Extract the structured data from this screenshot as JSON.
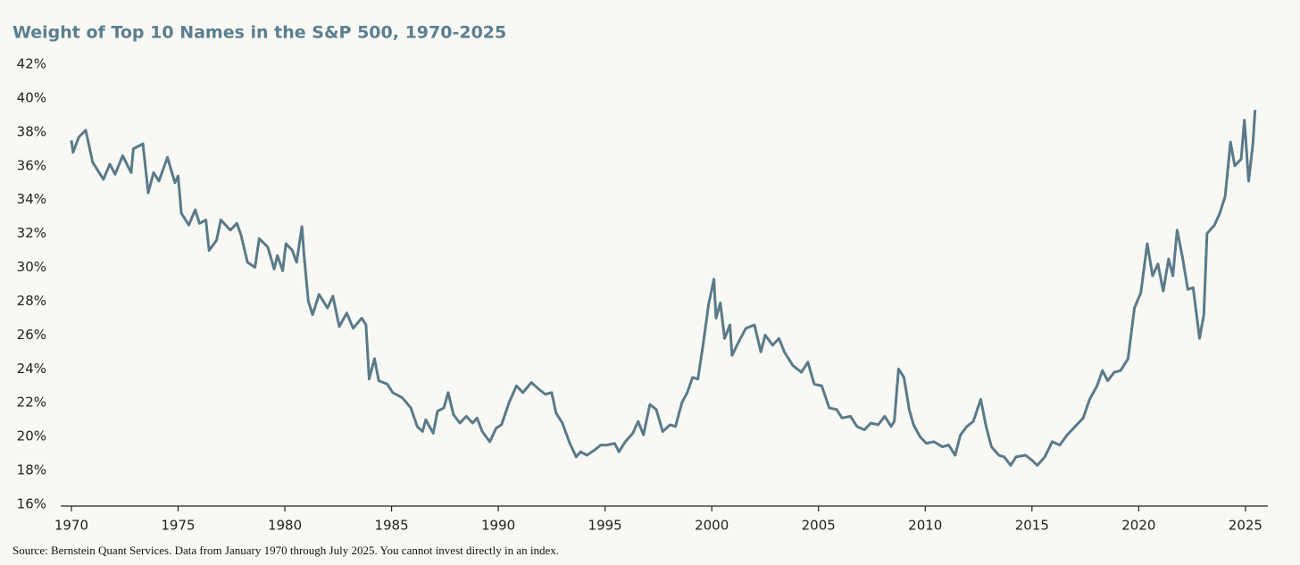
{
  "chart_data": {
    "type": "line",
    "title": "Weight of Top 10 Names in the S&P 500, 1970-2025",
    "note": "Source: Bernstein Quant Services. Data from January 1970 through July 2025. You cannot invest directly in an index.",
    "x": [
      1970,
      1970.08,
      1970.35,
      1970.67,
      1971,
      1971.5,
      1971.8,
      1972.05,
      1972.4,
      1972.8,
      1972.9,
      1973.35,
      1973.6,
      1973.85,
      1974.1,
      1974.5,
      1974.85,
      1975,
      1975.15,
      1975.5,
      1975.8,
      1976,
      1976.3,
      1976.45,
      1976.8,
      1977,
      1977.45,
      1977.75,
      1977.95,
      1978.25,
      1978.6,
      1978.8,
      1979.2,
      1979.5,
      1979.65,
      1979.9,
      1980.05,
      1980.35,
      1980.55,
      1980.8,
      1980.9,
      1981.1,
      1981.3,
      1981.6,
      1982,
      1982.25,
      1982.55,
      1982.9,
      1983.2,
      1983.6,
      1983.8,
      1983.95,
      1984.2,
      1984.4,
      1984.8,
      1985.05,
      1985.5,
      1985.9,
      1986.2,
      1986.45,
      1986.6,
      1986.95,
      1987.15,
      1987.45,
      1987.65,
      1987.9,
      1988.2,
      1988.5,
      1988.8,
      1989,
      1989.25,
      1989.6,
      1989.9,
      1990.15,
      1990.5,
      1990.85,
      1991.15,
      1991.55,
      1991.9,
      1992.2,
      1992.5,
      1992.7,
      1993,
      1993.35,
      1993.65,
      1993.85,
      1994.15,
      1994.5,
      1994.8,
      1995.1,
      1995.45,
      1995.65,
      1995.95,
      1996.3,
      1996.55,
      1996.8,
      1997.1,
      1997.4,
      1997.7,
      1998.05,
      1998.3,
      1998.6,
      1998.85,
      1999.1,
      1999.35,
      1999.6,
      1999.85,
      2000.1,
      2000.2,
      2000.4,
      2000.6,
      2000.85,
      2000.95,
      2001.3,
      2001.6,
      2002,
      2002.3,
      2002.5,
      2002.85,
      2003.15,
      2003.4,
      2003.8,
      2004.2,
      2004.5,
      2004.8,
      2005.15,
      2005.5,
      2005.85,
      2006.1,
      2006.5,
      2006.8,
      2007.15,
      2007.45,
      2007.8,
      2008.1,
      2008.4,
      2008.55,
      2008.75,
      2009,
      2009.25,
      2009.45,
      2009.75,
      2010.05,
      2010.4,
      2010.8,
      2011.1,
      2011.4,
      2011.65,
      2011.95,
      2012.25,
      2012.6,
      2012.85,
      2013.1,
      2013.45,
      2013.7,
      2014,
      2014.25,
      2014.7,
      2015,
      2015.25,
      2015.6,
      2015.95,
      2016.3,
      2016.65,
      2017.1,
      2017.4,
      2017.7,
      2018.05,
      2018.3,
      2018.55,
      2018.85,
      2019.15,
      2019.5,
      2019.8,
      2020.1,
      2020.4,
      2020.65,
      2020.9,
      2021.15,
      2021.4,
      2021.6,
      2021.8,
      2022.05,
      2022.3,
      2022.55,
      2022.85,
      2023.05,
      2023.2,
      2023.55,
      2023.8,
      2024.05,
      2024.3,
      2024.5,
      2024.8,
      2024.95,
      2025.15,
      2025.35,
      2025.45
    ],
    "series": [
      {
        "color": "#5a7a89",
        "values": [
          37.5,
          36.8,
          37.7,
          38.1,
          36.2,
          35.2,
          36.1,
          35.5,
          36.6,
          35.6,
          37,
          37.3,
          34.4,
          35.6,
          35.1,
          36.5,
          35,
          35.4,
          33.2,
          32.5,
          33.4,
          32.6,
          32.8,
          31,
          31.6,
          32.8,
          32.2,
          32.6,
          31.9,
          30.3,
          30,
          31.7,
          31.2,
          29.9,
          30.7,
          29.8,
          31.4,
          31,
          30.3,
          32.4,
          30.7,
          28,
          27.2,
          28.4,
          27.6,
          28.3,
          26.5,
          27.3,
          26.4,
          27,
          26.6,
          23.4,
          24.6,
          23.3,
          23.1,
          22.6,
          22.3,
          21.7,
          20.6,
          20.3,
          21,
          20.2,
          21.5,
          21.7,
          22.6,
          21.3,
          20.8,
          21.2,
          20.8,
          21.1,
          20.3,
          19.7,
          20.5,
          20.7,
          22,
          23,
          22.6,
          23.2,
          22.8,
          22.5,
          22.6,
          21.4,
          20.8,
          19.6,
          18.8,
          19.1,
          18.9,
          19.2,
          19.5,
          19.5,
          19.6,
          19.1,
          19.7,
          20.2,
          20.9,
          20.1,
          21.9,
          21.6,
          20.3,
          20.7,
          20.6,
          22,
          22.6,
          23.5,
          23.4,
          25.5,
          27.8,
          29.3,
          27,
          27.9,
          25.8,
          26.6,
          24.8,
          25.7,
          26.4,
          26.6,
          25,
          26,
          25.4,
          25.8,
          25,
          24.2,
          23.8,
          24.4,
          23.1,
          23,
          21.7,
          21.6,
          21.1,
          21.2,
          20.6,
          20.4,
          20.8,
          20.7,
          21.2,
          20.6,
          20.9,
          24,
          23.5,
          21.6,
          20.7,
          20,
          19.6,
          19.7,
          19.4,
          19.5,
          18.9,
          20.1,
          20.6,
          20.9,
          22.2,
          20.6,
          19.4,
          18.9,
          18.8,
          18.3,
          18.8,
          18.9,
          18.6,
          18.3,
          18.8,
          19.7,
          19.5,
          20.1,
          20.7,
          21.1,
          22.2,
          23,
          23.9,
          23.3,
          23.8,
          23.9,
          24.6,
          27.6,
          28.5,
          31.4,
          29.5,
          30.2,
          28.6,
          30.5,
          29.5,
          32.2,
          30.6,
          28.7,
          28.8,
          25.8,
          27.2,
          32,
          32.5,
          33.2,
          34.2,
          37.4,
          36,
          36.4,
          38.7,
          35.1,
          37.3,
          39.3
        ]
      }
    ],
    "xlim": [
      1969.5,
      2026.05
    ],
    "xticks": [
      1970,
      1975,
      1980,
      1985,
      1990,
      1995,
      2000,
      2005,
      2010,
      2015,
      2020,
      2025
    ],
    "ylim": [
      16,
      42
    ],
    "yticks": [
      {
        "value": 16,
        "label": "16%"
      },
      {
        "value": 18,
        "label": "18%"
      },
      {
        "value": 20,
        "label": "20%"
      },
      {
        "value": 22,
        "label": "22%"
      },
      {
        "value": 24,
        "label": "24%"
      },
      {
        "value": 26,
        "label": "26%"
      },
      {
        "value": 28,
        "label": "28%"
      },
      {
        "value": 30,
        "label": "30%"
      },
      {
        "value": 32,
        "label": "32%"
      },
      {
        "value": 34,
        "label": "34%"
      },
      {
        "value": 36,
        "label": "36%"
      },
      {
        "value": 38,
        "label": "38%"
      },
      {
        "value": 40,
        "label": "40%"
      },
      {
        "value": 42,
        "label": "42%"
      }
    ],
    "grid": false
  }
}
